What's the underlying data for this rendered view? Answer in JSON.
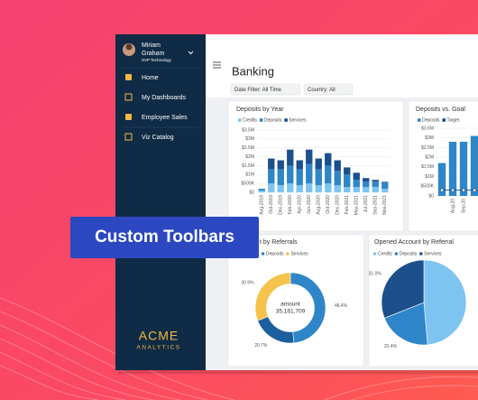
{
  "badge": "Custom Toolbars",
  "sidebar": {
    "user": {
      "name": [
        "Miriam",
        "Graham"
      ],
      "role": "SVP Technology"
    },
    "menu": [
      "Home",
      "My Dashboards",
      "Employee Sales",
      "Viz Catalog"
    ],
    "logo": {
      "brand": "ACME",
      "sub": "ANALYTICS"
    }
  },
  "header": {
    "title": "Banking",
    "filters": [
      "Date Filter: All Time",
      "Country: All"
    ]
  },
  "chart_data": [
    {
      "type": "bar",
      "stacked": true,
      "title": "Deposits by Year",
      "grid": true,
      "categories": [
        "Aug-2019",
        "Oct-2019",
        "Dec-2019",
        "Feb-2020",
        "Apr-2020",
        "Jun-2020",
        "Aug-2020",
        "Oct-2020",
        "Dec-2020",
        "Feb-2021",
        "May-2021",
        "Jul-2021",
        "Sep-2021",
        "Nov-2021"
      ],
      "series": [
        {
          "name": "Credits",
          "color": "#7dc4f0",
          "values": [
            0.1,
            0.5,
            0.4,
            0.5,
            0.4,
            0.5,
            0.4,
            0.5,
            0.4,
            0.3,
            0.3,
            0.3,
            0.3,
            0.2
          ]
        },
        {
          "name": "Deposits",
          "color": "#2e86c8",
          "values": [
            0.1,
            0.8,
            0.9,
            1.0,
            0.9,
            1.1,
            0.9,
            1.0,
            0.8,
            0.7,
            0.4,
            0.3,
            0.3,
            0.4
          ]
        },
        {
          "name": "Services",
          "color": "#1c4f8c",
          "values": [
            0,
            0.6,
            0.5,
            0.9,
            0.5,
            0.8,
            0.6,
            0.7,
            0.6,
            0.4,
            0.4,
            0.2,
            0.1,
            0
          ]
        }
      ],
      "ylim": [
        0,
        3.5
      ],
      "yticks": [
        {
          "value": 0,
          "label": "$0"
        },
        {
          "value": 0.5,
          "label": "$500K"
        },
        {
          "value": 1,
          "label": "$1M"
        },
        {
          "value": 1.5,
          "label": "$1.5M"
        },
        {
          "value": 2,
          "label": "$2M"
        },
        {
          "value": 2.5,
          "label": "$2.5M"
        },
        {
          "value": 3,
          "label": "$3M"
        },
        {
          "value": 3.5,
          "label": "$3.5M"
        }
      ]
    },
    {
      "type": "combo",
      "title": "Deposits vs. Goal",
      "grid": true,
      "categories": [
        null,
        "Aug-20",
        "Sep-20",
        null
      ],
      "series": [
        {
          "name": "Deposits",
          "mark": "bar",
          "color": "#2e86c8",
          "values": [
            1.7,
            2.8,
            2.8,
            3.1
          ]
        },
        {
          "name": "Target",
          "mark": "line",
          "color": "#1c4f8c",
          "values": [
            0.3,
            0.3,
            0.3,
            0.3
          ]
        }
      ],
      "ylim": [
        0,
        3.5
      ],
      "yticks": [
        {
          "value": 0,
          "label": "$0"
        },
        {
          "value": 0.5,
          "label": "$500K"
        },
        {
          "value": 1,
          "label": "$1M"
        },
        {
          "value": 1.5,
          "label": "$1.5M"
        },
        {
          "value": 2,
          "label": "$2M"
        },
        {
          "value": 2.5,
          "label": "$2.5M"
        },
        {
          "value": 3,
          "label": "$3M"
        },
        {
          "value": 3.5,
          "label": "$3.5M"
        }
      ]
    },
    {
      "type": "donut",
      "title": "t by Referrals",
      "legend": [
        {
          "name": "Deposits",
          "color": "#2e86c8"
        },
        {
          "name": "Services",
          "color": "#f4c34b"
        }
      ],
      "values": [
        48.4,
        20.7,
        30.9
      ],
      "value_labels": [
        "48.4%",
        "20.7%",
        "30.9%"
      ],
      "colors": [
        "#2e86c8",
        "#1c5f9e",
        "#f4c34b"
      ],
      "center_label": "amount",
      "center_value": "35,161,709"
    },
    {
      "type": "pie",
      "title": "Opened Account by Referral",
      "legend": [
        {
          "name": "Credits",
          "color": "#7dc4f0"
        },
        {
          "name": "Deposits",
          "color": "#2e86c8"
        },
        {
          "name": "Services",
          "color": "#1c4f8c"
        }
      ],
      "values": [
        48.6,
        20.4,
        31
      ],
      "value_labels": [
        null,
        "20.4%",
        "31.0%"
      ],
      "colors": [
        "#7dc4f0",
        "#2e86c8",
        "#1c4f8c"
      ]
    }
  ]
}
